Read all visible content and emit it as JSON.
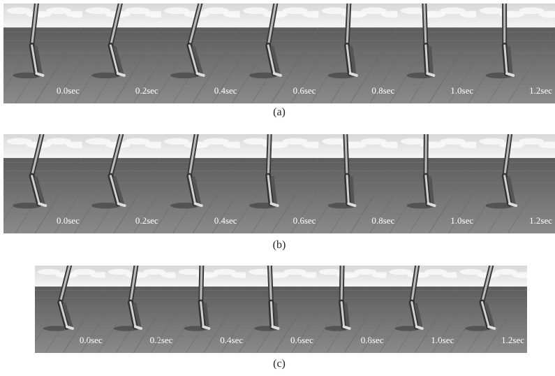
{
  "figures": [
    {
      "frames": [
        "0.0sec",
        "0.2sec",
        "0.4sec",
        "0.6sec",
        "0.8sec",
        "1.0sec",
        "1.2sec"
      ],
      "caption": "(a)"
    },
    {
      "frames": [
        "0.0sec",
        "0.2sec",
        "0.4sec",
        "0.6sec",
        "0.8sec",
        "1.0sec",
        "1.2sec"
      ],
      "caption": "(b)"
    },
    {
      "frames": [
        "0.0sec",
        "0.2sec",
        "0.4sec",
        "0.6sec",
        "0.8sec",
        "1.0sec",
        "1.2sec"
      ],
      "caption": "(c)"
    }
  ]
}
